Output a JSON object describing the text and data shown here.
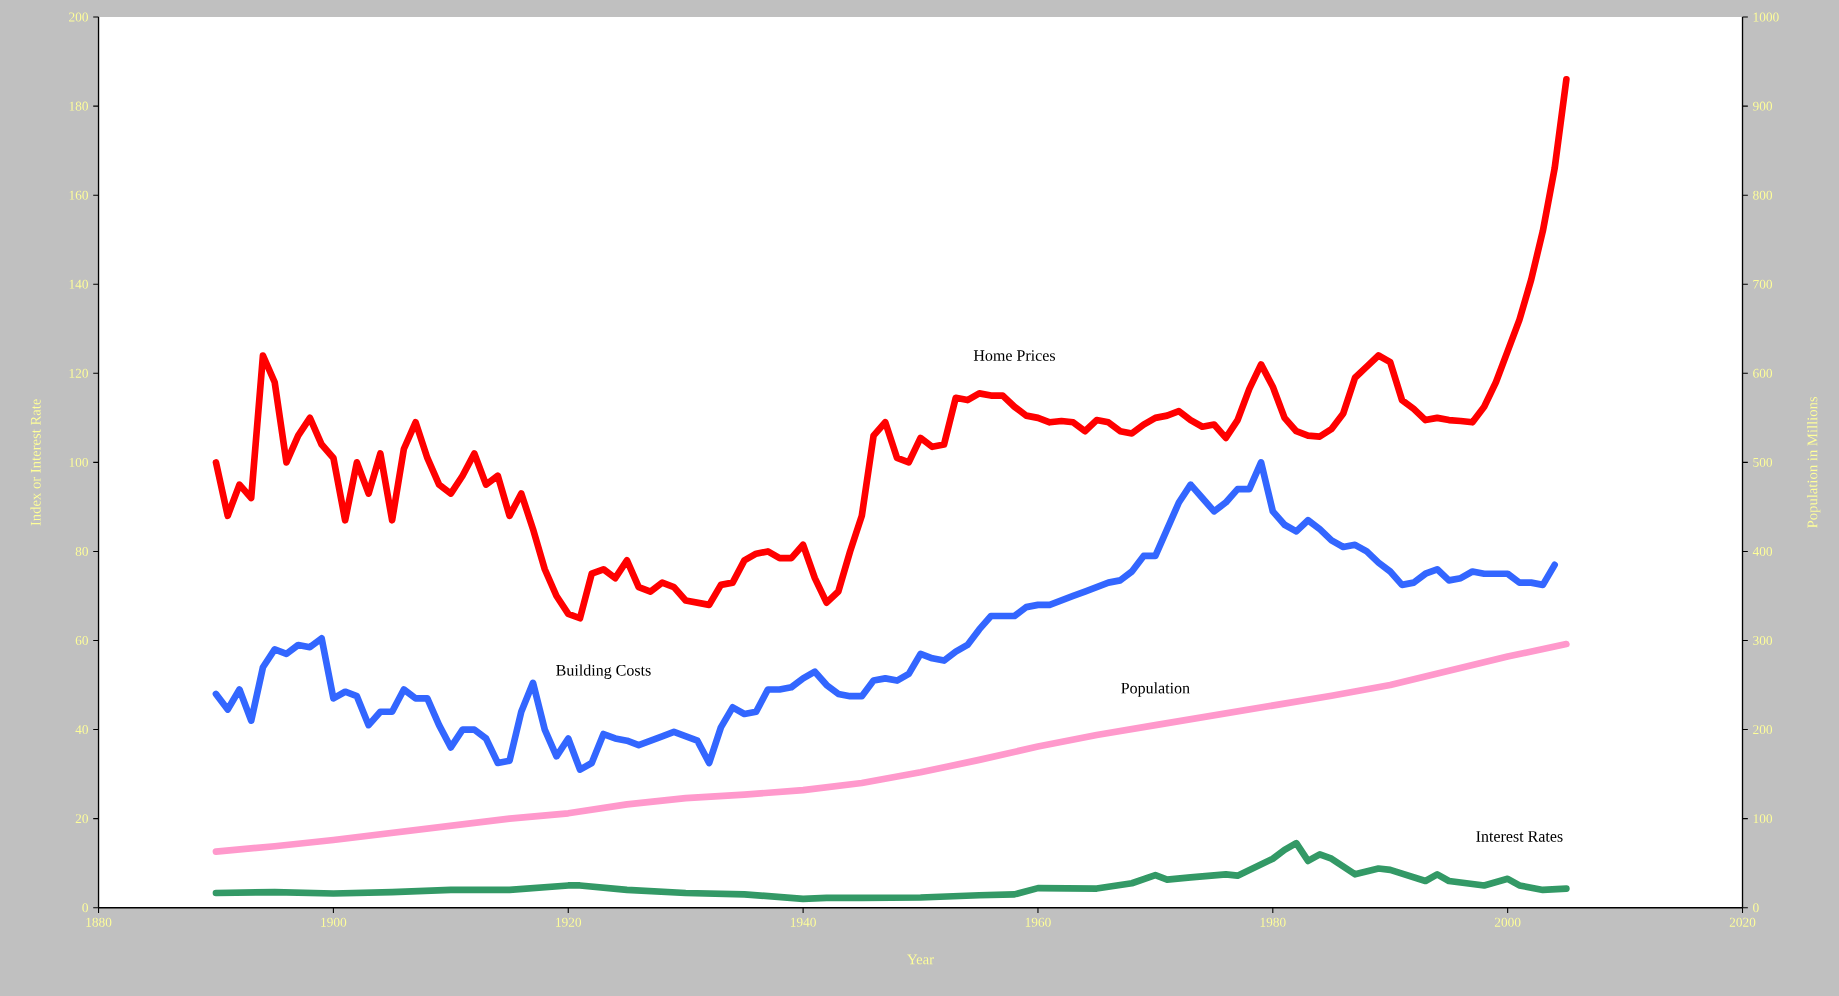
{
  "chart_data": {
    "type": "line",
    "xlabel": "Year",
    "ylabel": "Index or Interest Rate",
    "y2label": "Population in Millions",
    "xlim": [
      1880,
      2020
    ],
    "xticks": [
      1880,
      1900,
      1920,
      1940,
      1960,
      1980,
      2000,
      2020
    ],
    "ylim": [
      0,
      200
    ],
    "yticks": [
      0,
      20,
      40,
      60,
      80,
      100,
      120,
      140,
      160,
      180,
      200
    ],
    "y2lim": [
      0,
      1000
    ],
    "y2ticks": [
      0,
      100,
      200,
      300,
      400,
      500,
      600,
      700,
      800,
      900,
      1000
    ],
    "grid": false,
    "legend": false,
    "marker": "none",
    "line_style": "solid",
    "series": [
      {
        "name": "Home Prices",
        "color": "#ff0000",
        "x": [
          1890,
          1891,
          1892,
          1893,
          1894,
          1895,
          1896,
          1897,
          1898,
          1899,
          1900,
          1901,
          1902,
          1903,
          1904,
          1905,
          1906,
          1907,
          1908,
          1909,
          1910,
          1911,
          1912,
          1913,
          1914,
          1915,
          1916,
          1917,
          1918,
          1919,
          1920,
          1921,
          1922,
          1923,
          1924,
          1925,
          1926,
          1927,
          1928,
          1929,
          1930,
          1931,
          1932,
          1933,
          1934,
          1935,
          1936,
          1937,
          1938,
          1939,
          1940,
          1941,
          1942,
          1943,
          1944,
          1945,
          1946,
          1947,
          1948,
          1949,
          1950,
          1951,
          1952,
          1953,
          1954,
          1955,
          1956,
          1957,
          1958,
          1959,
          1960,
          1961,
          1962,
          1963,
          1964,
          1965,
          1966,
          1967,
          1968,
          1969,
          1970,
          1971,
          1972,
          1973,
          1974,
          1975,
          1976,
          1977,
          1978,
          1979,
          1980,
          1981,
          1982,
          1983,
          1984,
          1985,
          1986,
          1987,
          1988,
          1989,
          1990,
          1991,
          1992,
          1993,
          1994,
          1995,
          1996,
          1997,
          1998,
          1999,
          2000,
          2001,
          2002,
          2003,
          2004,
          2005
        ],
        "values": [
          100,
          88,
          95,
          92,
          124,
          118,
          100,
          106,
          110,
          104,
          101,
          87,
          100,
          93,
          102,
          87,
          103,
          109,
          101,
          95,
          93,
          97,
          102,
          95,
          97,
          88,
          93,
          85,
          76,
          70,
          66,
          65,
          75,
          76,
          74,
          78,
          72,
          71,
          73,
          72,
          69,
          68.5,
          68,
          72.5,
          73,
          78,
          79.5,
          80,
          78.5,
          78.5,
          81.5,
          74,
          68.5,
          71,
          80,
          88,
          106,
          109,
          101,
          100,
          105.5,
          103.5,
          104,
          114.5,
          114,
          115.5,
          115,
          115,
          112.5,
          110.5,
          110,
          109,
          109.3,
          109,
          107,
          109.5,
          109,
          107,
          106.5,
          108.5,
          110,
          110.5,
          111.5,
          109.5,
          108,
          108.5,
          105.5,
          109.5,
          116.5,
          122,
          117,
          110,
          107,
          106,
          105.8,
          107.5,
          111,
          119,
          121.5,
          124,
          122.5,
          114,
          112,
          109.5,
          110,
          109.5,
          109.3,
          109,
          112.5,
          118,
          125,
          132,
          141,
          152,
          166,
          186
        ]
      },
      {
        "name": "Building Costs",
        "color": "#3366ff",
        "x": [
          1890,
          1891,
          1892,
          1893,
          1894,
          1895,
          1896,
          1897,
          1898,
          1899,
          1900,
          1901,
          1902,
          1903,
          1904,
          1905,
          1906,
          1907,
          1908,
          1909,
          1910,
          1911,
          1912,
          1913,
          1914,
          1915,
          1916,
          1917,
          1918,
          1919,
          1920,
          1921,
          1922,
          1923,
          1924,
          1925,
          1926,
          1927,
          1928,
          1929,
          1930,
          1931,
          1932,
          1933,
          1934,
          1935,
          1936,
          1937,
          1938,
          1939,
          1940,
          1941,
          1942,
          1943,
          1944,
          1945,
          1946,
          1947,
          1948,
          1949,
          1950,
          1951,
          1952,
          1953,
          1954,
          1955,
          1956,
          1957,
          1958,
          1959,
          1960,
          1961,
          1962,
          1963,
          1964,
          1965,
          1966,
          1967,
          1968,
          1969,
          1970,
          1971,
          1972,
          1973,
          1974,
          1975,
          1976,
          1977,
          1978,
          1979,
          1980,
          1981,
          1982,
          1983,
          1984,
          1985,
          1986,
          1987,
          1988,
          1989,
          1990,
          1991,
          1992,
          1993,
          1994,
          1995,
          1996,
          1997,
          1998,
          1999,
          2000,
          2001,
          2002,
          2003,
          2004
        ],
        "values": [
          48,
          44.5,
          49,
          42,
          54,
          58,
          57,
          59,
          58.5,
          60.5,
          47,
          48.5,
          47.5,
          41,
          44,
          44,
          49,
          47,
          47,
          41,
          36,
          40,
          40,
          38,
          32.5,
          33,
          44,
          50.5,
          40,
          34,
          38,
          31,
          32.5,
          39,
          38,
          37.5,
          36.5,
          37.5,
          38.5,
          39.5,
          38.5,
          37.5,
          32.5,
          40.5,
          45,
          43.5,
          44,
          49,
          49,
          49.5,
          51.5,
          53,
          50,
          48,
          47.5,
          47.5,
          51,
          51.5,
          51,
          52.5,
          57,
          56,
          55.5,
          57.5,
          59,
          62.5,
          65.5,
          65.5,
          65.5,
          67.5,
          68,
          68,
          69,
          70,
          71,
          72,
          73,
          73.5,
          75.5,
          79,
          79,
          85,
          91,
          95,
          92,
          89,
          91,
          94,
          94,
          100,
          89,
          86,
          84.5,
          87,
          85,
          82.5,
          81,
          81.5,
          80,
          77.5,
          75.5,
          72.5,
          73,
          75,
          76,
          73.5,
          74,
          75.5,
          75,
          75,
          75,
          73,
          73,
          72.5,
          77
        ]
      },
      {
        "name": "Population",
        "color": "#ff99cc",
        "axis": "y2",
        "x": [
          1890,
          1895,
          1900,
          1905,
          1910,
          1915,
          1920,
          1925,
          1930,
          1935,
          1940,
          1945,
          1950,
          1955,
          1960,
          1965,
          1970,
          1975,
          1980,
          1985,
          1990,
          1995,
          2000,
          2005
        ],
        "values": [
          63,
          69,
          76,
          84,
          92,
          100,
          106,
          116,
          123,
          127,
          132,
          140,
          152,
          166,
          181,
          194,
          205,
          216,
          227,
          238,
          250,
          266,
          282,
          296
        ]
      },
      {
        "name": "Interest Rates",
        "color": "#339966",
        "x": [
          1890,
          1895,
          1900,
          1905,
          1910,
          1915,
          1920,
          1921,
          1925,
          1930,
          1935,
          1940,
          1942,
          1945,
          1950,
          1955,
          1958,
          1960,
          1965,
          1968,
          1970,
          1971,
          1973,
          1976,
          1977,
          1980,
          1981,
          1982,
          1983,
          1984,
          1985,
          1987,
          1989,
          1990,
          1993,
          1994,
          1995,
          1998,
          2000,
          2001,
          2003,
          2005
        ],
        "values": [
          3.3,
          3.5,
          3.2,
          3.5,
          4,
          4,
          5,
          5,
          4,
          3.3,
          3,
          2,
          2.2,
          2.2,
          2.3,
          2.8,
          3,
          4.4,
          4.3,
          5.5,
          7.3,
          6.3,
          6.8,
          7.5,
          7.2,
          11,
          13,
          14.5,
          10.5,
          12,
          11,
          7.5,
          8.8,
          8.5,
          6,
          7.5,
          6,
          5,
          6.5,
          5,
          4,
          4.3
        ]
      }
    ]
  }
}
